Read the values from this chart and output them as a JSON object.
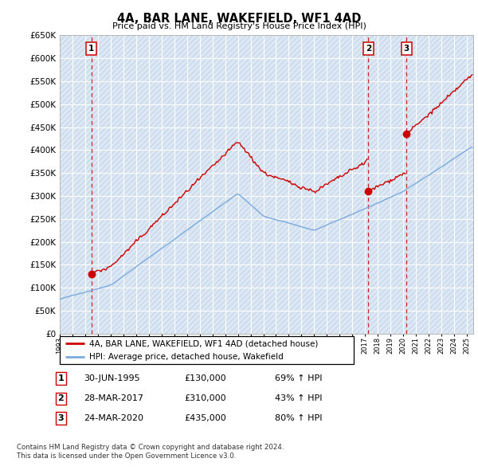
{
  "title": "4A, BAR LANE, WAKEFIELD, WF1 4AD",
  "subtitle": "Price paid vs. HM Land Registry's House Price Index (HPI)",
  "legend_line1": "4A, BAR LANE, WAKEFIELD, WF1 4AD (detached house)",
  "legend_line2": "HPI: Average price, detached house, Wakefield",
  "footer1": "Contains HM Land Registry data © Crown copyright and database right 2024.",
  "footer2": "This data is licensed under the Open Government Licence v3.0.",
  "ylim": [
    0,
    650000
  ],
  "yticks": [
    0,
    50000,
    100000,
    150000,
    200000,
    250000,
    300000,
    350000,
    400000,
    450000,
    500000,
    550000,
    600000,
    650000
  ],
  "xlim_start": 1993.0,
  "xlim_end": 2025.5,
  "sale_events": [
    {
      "num": 1,
      "date_str": "30-JUN-1995",
      "year": 1995.5,
      "price": 130000
    },
    {
      "num": 2,
      "date_str": "28-MAR-2017",
      "year": 2017.25,
      "price": 310000
    },
    {
      "num": 3,
      "date_str": "24-MAR-2020",
      "year": 2020.25,
      "price": 435000
    }
  ],
  "property_line_color": "#cc0000",
  "hpi_line_color": "#7aaadd",
  "dashed_line_color": "#cc0000",
  "background_color": "#ffffff",
  "plot_bg_color": "#dde8f5",
  "grid_color": "#ffffff",
  "hatch_color": "#c8d8ea",
  "table_row_data": [
    {
      "num": "1",
      "date": "30-JUN-1995",
      "price": "£130,000",
      "pct": "69% ↑ HPI"
    },
    {
      "num": "2",
      "date": "28-MAR-2017",
      "price": "£310,000",
      "pct": "43% ↑ HPI"
    },
    {
      "num": "3",
      "date": "24-MAR-2020",
      "price": "£435,000",
      "pct": "80% ↑ HPI"
    }
  ]
}
